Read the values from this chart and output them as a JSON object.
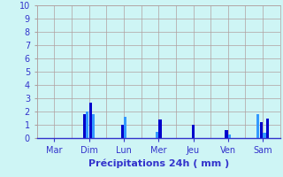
{
  "background_color": "#cef5f5",
  "grid_color": "#b0a0a0",
  "bar_color_dark": "#0000cc",
  "bar_color_light": "#3399ff",
  "ylabel_values": [
    0,
    1,
    2,
    3,
    4,
    5,
    6,
    7,
    8,
    9,
    10
  ],
  "ylim": [
    0,
    10
  ],
  "xlabel": "Précipitations 24h ( mm )",
  "xlabel_color": "#3333cc",
  "tick_color": "#3333cc",
  "day_labels": [
    "Mar",
    "Dim",
    "Lun",
    "Mer",
    "Jeu",
    "Ven",
    "Sam"
  ],
  "bars": [
    {
      "day": "Mar",
      "values": [],
      "colors": []
    },
    {
      "day": "Dim",
      "values": [
        1.8,
        2.0,
        2.7,
        1.8
      ],
      "colors": [
        "dark",
        "light",
        "dark",
        "light"
      ]
    },
    {
      "day": "Lun",
      "values": [
        1.0,
        1.6
      ],
      "colors": [
        "dark",
        "light"
      ]
    },
    {
      "day": "Mer",
      "values": [
        0.5,
        1.4
      ],
      "colors": [
        "light",
        "dark"
      ]
    },
    {
      "day": "Jeu",
      "values": [
        1.0
      ],
      "colors": [
        "dark"
      ]
    },
    {
      "day": "Ven",
      "values": [
        0.6,
        0.3
      ],
      "colors": [
        "dark",
        "light"
      ]
    },
    {
      "day": "Sam",
      "values": [
        1.8,
        1.2,
        0.4,
        1.5
      ],
      "colors": [
        "light",
        "dark",
        "light",
        "dark"
      ]
    }
  ]
}
